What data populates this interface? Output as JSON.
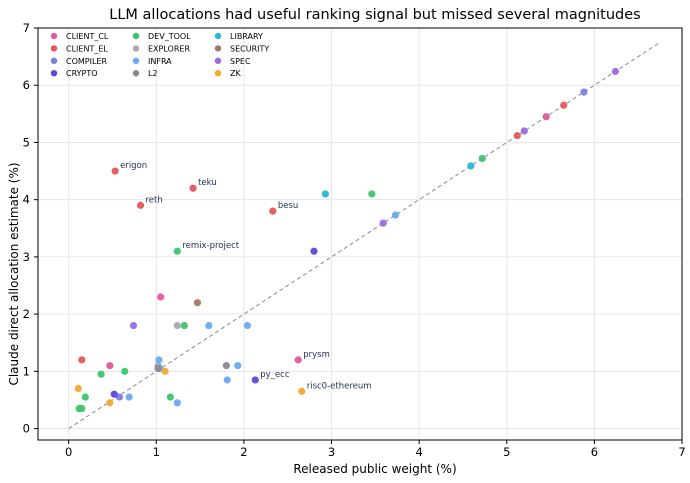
{
  "chart_data": {
    "type": "scatter",
    "title": "LLM allocations had useful ranking signal but missed several magnitudes",
    "xlabel": "Released public weight (%)",
    "ylabel": "Claude direct allocation estimate (%)",
    "xlim": [
      -0.35,
      7.0
    ],
    "ylim": [
      -0.2,
      7.0
    ],
    "xticks": [
      0,
      1,
      2,
      3,
      4,
      5,
      6,
      7
    ],
    "yticks": [
      0,
      1,
      2,
      3,
      4,
      5,
      6,
      7
    ],
    "grid": true,
    "legend_position": "top-left",
    "reference_line": {
      "x": [
        0,
        6.75
      ],
      "y": [
        0,
        6.75
      ],
      "style": "dashed",
      "color": "#888899"
    },
    "series": [
      {
        "name": "CLIENT_CL",
        "color": "#e2589b",
        "points": [
          [
            0.47,
            1.1
          ],
          [
            1.05,
            2.3
          ],
          [
            2.62,
            1.2
          ],
          [
            5.45,
            5.45
          ]
        ]
      },
      {
        "name": "CLIENT_EL",
        "color": "#e45756",
        "points": [
          [
            0.15,
            1.2
          ],
          [
            0.53,
            4.5
          ],
          [
            0.82,
            3.9
          ],
          [
            1.42,
            4.2
          ],
          [
            2.33,
            3.8
          ],
          [
            5.12,
            5.12
          ],
          [
            5.65,
            5.65
          ]
        ]
      },
      {
        "name": "COMPILER",
        "color": "#7b7fe0",
        "points": [
          [
            0.58,
            0.55
          ],
          [
            5.88,
            5.88
          ]
        ]
      },
      {
        "name": "CRYPTO",
        "color": "#6048d6",
        "points": [
          [
            0.52,
            0.6
          ],
          [
            2.13,
            0.85
          ],
          [
            2.8,
            3.1
          ]
        ]
      },
      {
        "name": "DEV_TOOL",
        "color": "#3ec46d",
        "points": [
          [
            0.12,
            0.35
          ],
          [
            0.15,
            0.35
          ],
          [
            0.19,
            0.55
          ],
          [
            0.37,
            0.95
          ],
          [
            0.64,
            1.0
          ],
          [
            1.16,
            0.55
          ],
          [
            1.24,
            3.1
          ],
          [
            1.32,
            1.8
          ],
          [
            3.46,
            4.1
          ],
          [
            4.72,
            4.72
          ]
        ]
      },
      {
        "name": "EXPLORER",
        "color": "#a7aab4",
        "points": [
          [
            1.02,
            1.1
          ],
          [
            1.24,
            1.8
          ]
        ]
      },
      {
        "name": "INFRA",
        "color": "#6aaaf0",
        "points": [
          [
            0.69,
            0.55
          ],
          [
            1.03,
            1.2
          ],
          [
            1.04,
            1.05
          ],
          [
            1.24,
            0.45
          ],
          [
            1.6,
            1.8
          ],
          [
            1.81,
            0.85
          ],
          [
            1.93,
            1.1
          ],
          [
            2.04,
            1.8
          ],
          [
            3.73,
            3.73
          ]
        ]
      },
      {
        "name": "L2",
        "color": "#8a8a96",
        "points": [
          [
            1.02,
            1.05
          ],
          [
            1.8,
            1.1
          ]
        ]
      },
      {
        "name": "LIBRARY",
        "color": "#27b6d8",
        "points": [
          [
            2.93,
            4.1
          ],
          [
            4.59,
            4.59
          ]
        ]
      },
      {
        "name": "SECURITY",
        "color": "#a0786a",
        "points": [
          [
            1.47,
            2.2
          ]
        ]
      },
      {
        "name": "SPEC",
        "color": "#9b6be0",
        "points": [
          [
            0.74,
            1.8
          ],
          [
            3.59,
            3.59
          ],
          [
            5.2,
            5.2
          ],
          [
            6.24,
            6.24
          ]
        ]
      },
      {
        "name": "ZK",
        "color": "#f3a930",
        "points": [
          [
            0.11,
            0.7
          ],
          [
            0.47,
            0.45
          ],
          [
            1.1,
            1.0
          ],
          [
            2.66,
            0.65
          ]
        ]
      }
    ],
    "annotations": [
      {
        "text": "erigon",
        "x": 0.53,
        "y": 4.5
      },
      {
        "text": "teku",
        "x": 1.42,
        "y": 4.2
      },
      {
        "text": "reth",
        "x": 0.82,
        "y": 3.9
      },
      {
        "text": "besu",
        "x": 2.33,
        "y": 3.8
      },
      {
        "text": "remix-project",
        "x": 1.24,
        "y": 3.1
      },
      {
        "text": "prysm",
        "x": 2.62,
        "y": 1.2
      },
      {
        "text": "py_ecc",
        "x": 2.13,
        "y": 0.85
      },
      {
        "text": "risc0-ethereum",
        "x": 2.66,
        "y": 0.65
      }
    ]
  }
}
